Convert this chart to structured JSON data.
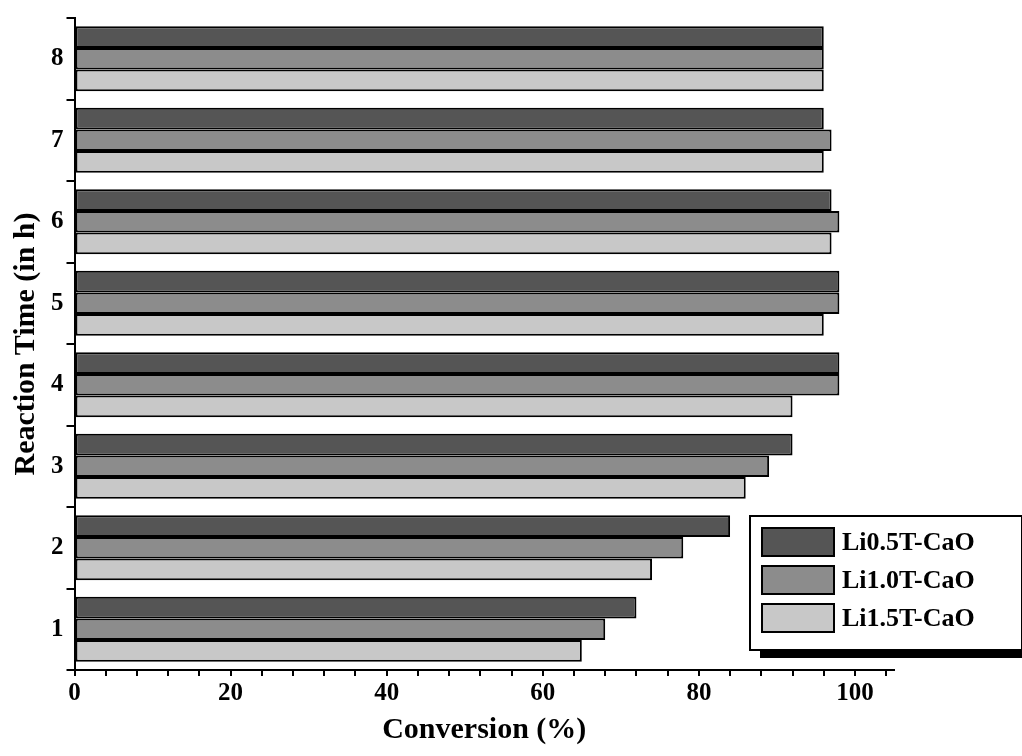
{
  "chart_data": {
    "type": "bar",
    "orientation": "horizontal",
    "xlabel": "Conversion (%)",
    "ylabel": "Reaction Time (in h)",
    "categories": [
      "8",
      "7",
      "6",
      "5",
      "4",
      "3",
      "2",
      "1"
    ],
    "series": [
      {
        "name": "Li0.5T-CaO",
        "color": "#555555",
        "values": [
          96,
          96,
          97,
          98,
          98,
          92,
          84,
          72
        ]
      },
      {
        "name": "Li1.0T-CaO",
        "color": "#8c8c8c",
        "values": [
          96,
          97,
          98,
          98,
          98,
          89,
          78,
          68
        ]
      },
      {
        "name": "Li1.5T-CaO",
        "color": "#c8c8c8",
        "values": [
          96,
          96,
          97,
          96,
          92,
          86,
          74,
          65
        ]
      }
    ],
    "xlim": [
      0,
      105
    ],
    "xticks": [
      0,
      {
        "value": 4,
        "label": null
      },
      {
        "value": 8,
        "label": null
      },
      {
        "value": 12,
        "label": null
      },
      {
        "value": 16,
        "label": null
      },
      20,
      {
        "value": 24,
        "label": null
      },
      {
        "value": 28,
        "label": null
      },
      {
        "value": 32,
        "label": null
      },
      {
        "value": 36,
        "label": null
      },
      40,
      {
        "value": 44,
        "label": null
      },
      {
        "value": 48,
        "label": null
      },
      {
        "value": 52,
        "label": null
      },
      {
        "value": 56,
        "label": null
      },
      60,
      {
        "value": 64,
        "label": null
      },
      {
        "value": 68,
        "label": null
      },
      {
        "value": 72,
        "label": null
      },
      {
        "value": 76,
        "label": null
      },
      80,
      {
        "value": 84,
        "label": null
      },
      {
        "value": 88,
        "label": null
      },
      {
        "value": 92,
        "label": null
      },
      {
        "value": 96,
        "label": null
      },
      100,
      {
        "value": 104,
        "label": null
      }
    ],
    "grid": false,
    "legend": "bottom right"
  }
}
